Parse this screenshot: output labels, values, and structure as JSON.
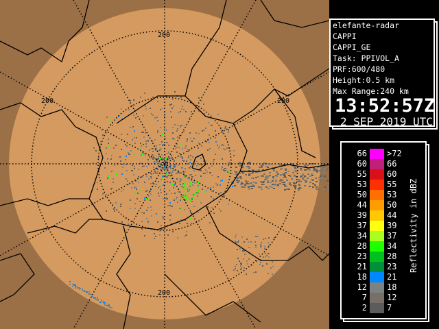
{
  "info": {
    "radar": "elefante-radar",
    "product": "CAPPI",
    "product_name": "CAPPI_GE",
    "task": "Task: PPIVOL_A",
    "prf": "PRF:600/480",
    "height": "Height:0.5 km",
    "max_range": "Max Range:240 km",
    "time": "13:52:57Z",
    "date": "2 SEP 2019 UTC"
  },
  "map": {
    "range_labels": [
      "200",
      "200",
      "200",
      "200"
    ],
    "colors": {
      "outside": "#9b7047",
      "coverage": "#d59a60",
      "borders": "#000000"
    }
  },
  "legend": {
    "unit": "Reflectivity in dBZ",
    "rows": [
      {
        "lo": "66",
        "hi": ">72",
        "color": "#ff00ff"
      },
      {
        "lo": "60",
        "hi": "66",
        "color": "#c0207a"
      },
      {
        "lo": "55",
        "hi": "60",
        "color": "#d81018"
      },
      {
        "lo": "53",
        "hi": "55",
        "color": "#ff3000"
      },
      {
        "lo": "50",
        "hi": "53",
        "color": "#ff7000"
      },
      {
        "lo": "44",
        "hi": "50",
        "color": "#ff9c00"
      },
      {
        "lo": "39",
        "hi": "44",
        "color": "#ffc800"
      },
      {
        "lo": "37",
        "hi": "39",
        "color": "#ffff10"
      },
      {
        "lo": "34",
        "hi": "37",
        "color": "#a8ff20"
      },
      {
        "lo": "28",
        "hi": "34",
        "color": "#20ff00"
      },
      {
        "lo": "23",
        "hi": "28",
        "color": "#00c020"
      },
      {
        "lo": "21",
        "hi": "23",
        "color": "#00903a"
      },
      {
        "lo": "18",
        "hi": "21",
        "color": "#0088ff"
      },
      {
        "lo": "12",
        "hi": "18",
        "color": "#7a8282"
      },
      {
        "lo": "7",
        "hi": "12",
        "color": "#787068"
      },
      {
        "lo": "2",
        "hi": "7",
        "color": "#5c5c5c"
      }
    ]
  }
}
